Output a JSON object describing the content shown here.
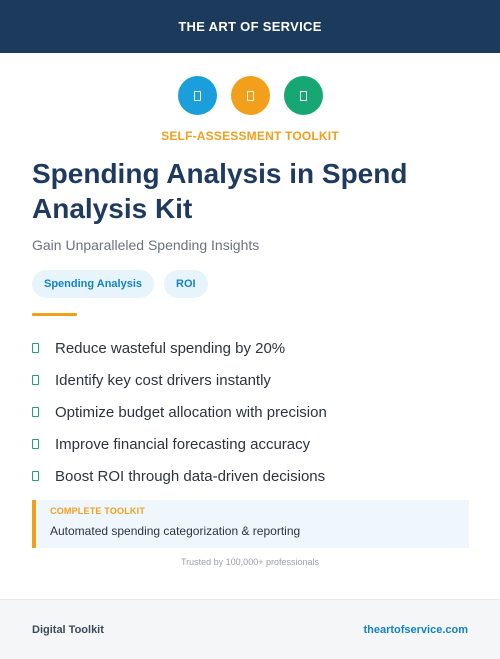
{
  "header": {
    "brand": "THE ART OF SERVICE",
    "background": "#1b3a5c"
  },
  "icons": [
    {
      "name": "blue-icon",
      "color": "#1a9fdc"
    },
    {
      "name": "orange-icon",
      "color": "#f29f1b"
    },
    {
      "name": "green-icon",
      "color": "#16a772"
    }
  ],
  "eyebrow": {
    "text": "SELF-ASSESSMENT TOOLKIT",
    "color": "#f29f1b"
  },
  "title": "Spending Analysis in Spend Analysis Kit",
  "subtitle": "Gain Unparalleled Spending Insights",
  "tags": [
    "Spending Analysis",
    "ROI"
  ],
  "accent_color": "#f29f1b",
  "benefits": [
    "Reduce wasteful spending by 20%",
    "Identify key cost drivers instantly",
    "Optimize budget allocation with precision",
    "Improve financial forecasting accuracy",
    "Boost ROI through data-driven decisions"
  ],
  "callout": {
    "label": "COMPLETE TOOLKIT",
    "text": "Automated spending categorization & reporting"
  },
  "trust": "Trusted by 100,000+ professionals",
  "footer": {
    "left": "Digital Toolkit",
    "right": "theartofservice.com"
  }
}
